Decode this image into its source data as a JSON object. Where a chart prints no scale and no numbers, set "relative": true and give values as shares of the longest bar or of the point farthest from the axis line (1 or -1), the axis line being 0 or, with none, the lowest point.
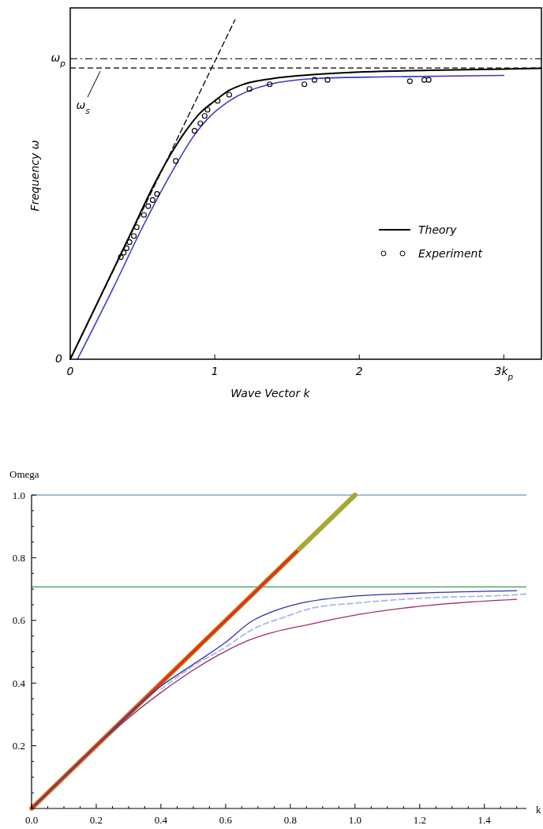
{
  "chart_data": [
    {
      "type": "line",
      "xlabel": "Wave Vector  k",
      "ylabel": "Frequency  ω",
      "relative": true,
      "xlim": [
        0,
        3.26
      ],
      "xticks": [
        0,
        1,
        2,
        {
          "value": 3,
          "label": "3k$_{p}$"
        }
      ],
      "annotations": [
        "0"
      ],
      "grid": false,
      "legend": "right",
      "ref_lines": [
        {
          "axis": "y",
          "value": 0.885,
          "label": "ω$_{p}$",
          "color": "#000000",
          "line_style": "dashdot"
        },
        {
          "axis": "y",
          "value": 0.858,
          "label": "ω$_{s}$",
          "color": "#000000",
          "line_style": "dashed"
        }
      ],
      "series": [
        {
          "type": "line",
          "name": "Theory",
          "color": "#000000",
          "line_style": "solid",
          "marker": "none",
          "x": [
            0,
            0.2,
            0.4,
            0.6,
            0.8,
            0.9,
            1.0,
            1.1,
            1.2,
            1.4,
            1.7,
            2.0,
            2.5,
            3.0,
            3.26
          ],
          "values": [
            0,
            0.177,
            0.354,
            0.531,
            0.673,
            0.726,
            0.761,
            0.792,
            0.81,
            0.827,
            0.839,
            0.846,
            0.851,
            0.855,
            0.857
          ]
        },
        {
          "type": "line",
          "color": "#3a3acc",
          "line_style": "solid",
          "marker": "none",
          "x": [
            0.05,
            0.3,
            0.5,
            0.7,
            0.85,
            0.95,
            1.1,
            1.38,
            1.7,
            2.2,
            3.0
          ],
          "values": [
            0,
            0.212,
            0.389,
            0.549,
            0.655,
            0.708,
            0.761,
            0.81,
            0.827,
            0.832,
            0.836
          ]
        },
        {
          "type": "line",
          "color": "#000000",
          "line_style": "dashed",
          "marker": "none",
          "x": [
            0,
            1.14
          ],
          "values": [
            0,
            1
          ]
        },
        {
          "type": "scatter",
          "name": "Experiment",
          "color": "#000000",
          "marker": "circle",
          "x": [
            0.35,
            0.37,
            0.39,
            0.41,
            0.44,
            0.46,
            0.51,
            0.54,
            0.57,
            0.6,
            0.73,
            0.86,
            0.9,
            0.93,
            0.95,
            1.02,
            1.1,
            1.24,
            1.38,
            1.62,
            1.69,
            1.78,
            2.35,
            2.45,
            2.48
          ],
          "values": [
            0.301,
            0.314,
            0.327,
            0.345,
            0.363,
            0.389,
            0.425,
            0.451,
            0.469,
            0.487,
            0.584,
            0.673,
            0.695,
            0.717,
            0.735,
            0.761,
            0.779,
            0.796,
            0.81,
            0.81,
            0.823,
            0.823,
            0.819,
            0.823,
            0.823
          ]
        }
      ]
    },
    {
      "type": "line",
      "ylabel": "Omega",
      "xlabel": "k",
      "xlim": [
        0,
        1.53
      ],
      "ylim": [
        0,
        1
      ],
      "xticks": [
        {
          "value": 0,
          "label": "0.0"
        },
        {
          "value": 0.05,
          "label": null
        },
        {
          "value": 0.1,
          "label": null
        },
        {
          "value": 0.15,
          "label": null
        },
        {
          "value": 0.2,
          "label": "0.2"
        },
        {
          "value": 0.25,
          "label": null
        },
        {
          "value": 0.3,
          "label": null
        },
        {
          "value": 0.35,
          "label": null
        },
        {
          "value": 0.4,
          "label": "0.4"
        },
        {
          "value": 0.45,
          "label": null
        },
        {
          "value": 0.5,
          "label": null
        },
        {
          "value": 0.55,
          "label": null
        },
        {
          "value": 0.6,
          "label": "0.6"
        },
        {
          "value": 0.65,
          "label": null
        },
        {
          "value": 0.7,
          "label": null
        },
        {
          "value": 0.75,
          "label": null
        },
        {
          "value": 0.8,
          "label": "0.8"
        },
        {
          "value": 0.85,
          "label": null
        },
        {
          "value": 0.9,
          "label": null
        },
        {
          "value": 0.95,
          "label": null
        },
        {
          "value": 1.0,
          "label": "1.0"
        },
        {
          "value": 1.05,
          "label": null
        },
        {
          "value": 1.1,
          "label": null
        },
        {
          "value": 1.15,
          "label": null
        },
        {
          "value": 1.2,
          "label": "1.2"
        },
        {
          "value": 1.25,
          "label": null
        },
        {
          "value": 1.3,
          "label": null
        },
        {
          "value": 1.35,
          "label": null
        },
        {
          "value": 1.4,
          "label": "1.4"
        },
        {
          "value": 1.45,
          "label": null
        },
        {
          "value": 1.5,
          "label": null
        }
      ],
      "yticks": [
        {
          "value": 0.05,
          "label": null
        },
        {
          "value": 0.1,
          "label": null
        },
        {
          "value": 0.15,
          "label": null
        },
        {
          "value": 0.2,
          "label": "0.2"
        },
        {
          "value": 0.25,
          "label": null
        },
        {
          "value": 0.3,
          "label": null
        },
        {
          "value": 0.35,
          "label": null
        },
        {
          "value": 0.4,
          "label": "0.4"
        },
        {
          "value": 0.45,
          "label": null
        },
        {
          "value": 0.5,
          "label": null
        },
        {
          "value": 0.55,
          "label": null
        },
        {
          "value": 0.6,
          "label": "0.6"
        },
        {
          "value": 0.65,
          "label": null
        },
        {
          "value": 0.7,
          "label": null
        },
        {
          "value": 0.75,
          "label": null
        },
        {
          "value": 0.8,
          "label": "0.8"
        },
        {
          "value": 0.85,
          "label": null
        },
        {
          "value": 0.9,
          "label": null
        },
        {
          "value": 0.95,
          "label": null
        },
        {
          "value": 1.0,
          "label": "1.0"
        }
      ],
      "grid": false,
      "ref_lines": [
        {
          "axis": "y",
          "value": 1,
          "label": null,
          "color": "#4a7ab0",
          "line_style": "solid"
        },
        {
          "axis": "y",
          "value": 0.707,
          "label": null,
          "color": "#3a9a5a",
          "line_style": "solid"
        }
      ],
      "series": [
        {
          "type": "line",
          "color": "#a8a830",
          "line_style": "solid",
          "marker": "none",
          "x": [
            0,
            1.0
          ],
          "values": [
            0,
            1.0
          ]
        },
        {
          "type": "line",
          "color": "#ee2a1a",
          "line_style": "solid",
          "marker": "none",
          "x": [
            0,
            0.82
          ],
          "values": [
            0,
            0.82
          ]
        },
        {
          "type": "line",
          "color": "#3030b0",
          "line_style": "solid",
          "marker": "none",
          "x": [
            0,
            0.2,
            0.4,
            0.5,
            0.6,
            0.68,
            0.75,
            0.82,
            0.97,
            1.2,
            1.5
          ],
          "values": [
            0,
            0.2,
            0.39,
            0.46,
            0.53,
            0.597,
            0.63,
            0.652,
            0.675,
            0.687,
            0.695
          ]
        },
        {
          "type": "line",
          "color": "#a8b8f0",
          "line_style": "dashed",
          "marker": "none",
          "x": [
            0.4,
            0.5,
            0.6,
            0.69,
            0.78,
            0.87,
            1.0,
            1.19,
            1.5,
            1.53
          ],
          "values": [
            0.38,
            0.455,
            0.515,
            0.575,
            0.61,
            0.64,
            0.655,
            0.67,
            0.682,
            0.684
          ]
        },
        {
          "type": "line",
          "color": "#a03060",
          "line_style": "solid",
          "marker": "none",
          "x": [
            0,
            0.2,
            0.4,
            0.545,
            0.67,
            0.87,
            0.99,
            1.2,
            1.5
          ],
          "values": [
            0,
            0.2,
            0.37,
            0.47,
            0.536,
            0.59,
            0.615,
            0.645,
            0.667
          ]
        }
      ]
    }
  ]
}
